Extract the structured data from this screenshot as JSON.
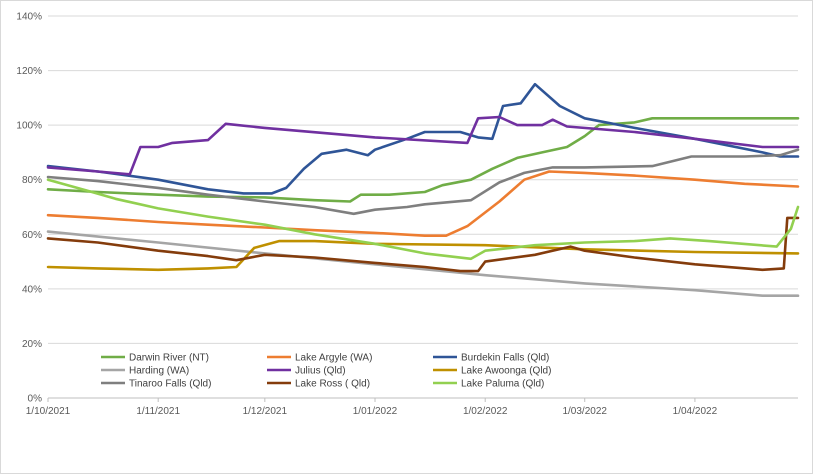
{
  "chart_data": {
    "type": "line",
    "title": "",
    "xlabel": "",
    "ylabel": "",
    "ylim": [
      0,
      140
    ],
    "y_unit": "%",
    "grid": "horizontal",
    "legend_position": "bottom-left-inside",
    "y_ticks": [
      "0%",
      "20%",
      "40%",
      "60%",
      "80%",
      "100%",
      "120%",
      "140%"
    ],
    "x_range": [
      "2021-10-01",
      "2022-04-30"
    ],
    "x_ticks": [
      {
        "date": "2021-10-01",
        "label": "1/10/2021"
      },
      {
        "date": "2021-11-01",
        "label": "1/11/2021"
      },
      {
        "date": "2021-12-01",
        "label": "1/12/2021"
      },
      {
        "date": "2022-01-01",
        "label": "1/01/2022"
      },
      {
        "date": "2022-02-01",
        "label": "1/02/2022"
      },
      {
        "date": "2022-03-01",
        "label": "1/03/2022"
      },
      {
        "date": "2022-04-01",
        "label": "1/04/2022"
      }
    ],
    "series": [
      {
        "name": "Darwin River (NT)",
        "color": "#70ad47",
        "points": [
          [
            "2021-10-01",
            76.5
          ],
          [
            "2021-10-15",
            75.5
          ],
          [
            "2021-11-01",
            74.5
          ],
          [
            "2021-11-15",
            73.8
          ],
          [
            "2021-12-01",
            73.5
          ],
          [
            "2021-12-15",
            72.5
          ],
          [
            "2021-12-25",
            72
          ],
          [
            "2021-12-28",
            74.5
          ],
          [
            "2022-01-05",
            74.5
          ],
          [
            "2022-01-15",
            75.5
          ],
          [
            "2022-01-20",
            78
          ],
          [
            "2022-01-28",
            80
          ],
          [
            "2022-02-03",
            84
          ],
          [
            "2022-02-10",
            88
          ],
          [
            "2022-02-17",
            90
          ],
          [
            "2022-02-24",
            92
          ],
          [
            "2022-03-01",
            96
          ],
          [
            "2022-03-05",
            100
          ],
          [
            "2022-03-15",
            101
          ],
          [
            "2022-03-20",
            102.5
          ],
          [
            "2022-04-30",
            102.5
          ]
        ]
      },
      {
        "name": "Lake Argyle (WA)",
        "color": "#ed7d31",
        "points": [
          [
            "2021-10-01",
            67
          ],
          [
            "2021-10-15",
            66
          ],
          [
            "2021-11-01",
            64.5
          ],
          [
            "2021-11-15",
            63.5
          ],
          [
            "2021-12-01",
            62.5
          ],
          [
            "2021-12-15",
            61.5
          ],
          [
            "2022-01-01",
            60.5
          ],
          [
            "2022-01-15",
            59.5
          ],
          [
            "2022-01-21",
            59.5
          ],
          [
            "2022-01-27",
            63
          ],
          [
            "2022-02-05",
            72
          ],
          [
            "2022-02-12",
            80
          ],
          [
            "2022-02-19",
            83
          ],
          [
            "2022-03-01",
            82.5
          ],
          [
            "2022-03-15",
            81.5
          ],
          [
            "2022-04-01",
            80
          ],
          [
            "2022-04-15",
            78.5
          ],
          [
            "2022-04-30",
            77.5
          ]
        ]
      },
      {
        "name": "Burdekin Falls (Qld)",
        "color": "#2f5597",
        "points": [
          [
            "2021-10-01",
            85
          ],
          [
            "2021-10-15",
            83
          ],
          [
            "2021-11-01",
            80
          ],
          [
            "2021-11-15",
            76.5
          ],
          [
            "2021-11-25",
            75
          ],
          [
            "2021-12-03",
            75
          ],
          [
            "2021-12-07",
            77
          ],
          [
            "2021-12-12",
            84
          ],
          [
            "2021-12-17",
            89.5
          ],
          [
            "2021-12-24",
            91
          ],
          [
            "2021-12-30",
            89
          ],
          [
            "2022-01-01",
            91
          ],
          [
            "2022-01-10",
            95
          ],
          [
            "2022-01-15",
            97.5
          ],
          [
            "2022-01-25",
            97.5
          ],
          [
            "2022-01-30",
            95.5
          ],
          [
            "2022-02-03",
            95
          ],
          [
            "2022-02-06",
            107
          ],
          [
            "2022-02-11",
            108
          ],
          [
            "2022-02-15",
            115
          ],
          [
            "2022-02-22",
            107
          ],
          [
            "2022-03-01",
            102.5
          ],
          [
            "2022-03-15",
            99
          ],
          [
            "2022-04-01",
            95
          ],
          [
            "2022-04-20",
            90
          ],
          [
            "2022-04-25",
            88.5
          ],
          [
            "2022-04-30",
            88.5
          ]
        ]
      },
      {
        "name": "Harding (WA)",
        "color": "#a5a5a5",
        "points": [
          [
            "2021-10-01",
            61
          ],
          [
            "2021-11-01",
            57
          ],
          [
            "2021-12-01",
            53
          ],
          [
            "2022-01-01",
            49
          ],
          [
            "2022-02-01",
            45
          ],
          [
            "2022-03-01",
            42
          ],
          [
            "2022-04-01",
            39.5
          ],
          [
            "2022-04-20",
            37.5
          ],
          [
            "2022-04-30",
            37.5
          ]
        ]
      },
      {
        "name": "Julius (Qld)",
        "color": "#7030a0",
        "points": [
          [
            "2021-10-01",
            84.5
          ],
          [
            "2021-10-15",
            83
          ],
          [
            "2021-10-24",
            82
          ],
          [
            "2021-10-27",
            92
          ],
          [
            "2021-11-01",
            92
          ],
          [
            "2021-11-05",
            93.5
          ],
          [
            "2021-11-15",
            94.5
          ],
          [
            "2021-11-20",
            100.5
          ],
          [
            "2021-12-01",
            99
          ],
          [
            "2022-01-01",
            95.5
          ],
          [
            "2022-01-27",
            93.5
          ],
          [
            "2022-01-30",
            102.5
          ],
          [
            "2022-02-05",
            103
          ],
          [
            "2022-02-10",
            100
          ],
          [
            "2022-02-17",
            100
          ],
          [
            "2022-02-20",
            102
          ],
          [
            "2022-02-24",
            99.5
          ],
          [
            "2022-03-15",
            97.5
          ],
          [
            "2022-04-01",
            95
          ],
          [
            "2022-04-20",
            92
          ],
          [
            "2022-04-30",
            92
          ]
        ]
      },
      {
        "name": "Lake Awoonga (Qld)",
        "color": "#bf9000",
        "points": [
          [
            "2021-10-01",
            48
          ],
          [
            "2021-10-15",
            47.5
          ],
          [
            "2021-11-01",
            47
          ],
          [
            "2021-11-15",
            47.5
          ],
          [
            "2021-11-23",
            48
          ],
          [
            "2021-11-28",
            55
          ],
          [
            "2021-12-05",
            57.5
          ],
          [
            "2021-12-15",
            57.5
          ],
          [
            "2022-01-01",
            56.5
          ],
          [
            "2022-02-01",
            56
          ],
          [
            "2022-03-01",
            54.5
          ],
          [
            "2022-04-01",
            53.5
          ],
          [
            "2022-04-30",
            53
          ]
        ]
      },
      {
        "name": "Tinaroo Falls (Qld)",
        "color": "#7f7f7f",
        "points": [
          [
            "2021-10-01",
            81
          ],
          [
            "2021-10-15",
            79.5
          ],
          [
            "2021-11-01",
            77
          ],
          [
            "2021-11-15",
            74.5
          ],
          [
            "2021-12-01",
            72
          ],
          [
            "2021-12-15",
            70
          ],
          [
            "2021-12-26",
            67.5
          ],
          [
            "2022-01-01",
            69
          ],
          [
            "2022-01-10",
            70
          ],
          [
            "2022-01-15",
            71
          ],
          [
            "2022-01-28",
            72.5
          ],
          [
            "2022-02-05",
            79
          ],
          [
            "2022-02-12",
            82.5
          ],
          [
            "2022-02-20",
            84.5
          ],
          [
            "2022-03-01",
            84.5
          ],
          [
            "2022-03-20",
            85
          ],
          [
            "2022-03-31",
            88.5
          ],
          [
            "2022-04-15",
            88.5
          ],
          [
            "2022-04-25",
            89
          ],
          [
            "2022-04-30",
            91
          ]
        ]
      },
      {
        "name": "Lake Ross ( Qld)",
        "color": "#843c0c",
        "points": [
          [
            "2021-10-01",
            58.5
          ],
          [
            "2021-10-15",
            57
          ],
          [
            "2021-11-01",
            54
          ],
          [
            "2021-11-15",
            52
          ],
          [
            "2021-11-23",
            50.5
          ],
          [
            "2021-12-01",
            52.5
          ],
          [
            "2021-12-15",
            51.5
          ],
          [
            "2022-01-01",
            49.5
          ],
          [
            "2022-01-15",
            48
          ],
          [
            "2022-01-25",
            46.5
          ],
          [
            "2022-01-30",
            46.5
          ],
          [
            "2022-02-01",
            50
          ],
          [
            "2022-02-15",
            52.5
          ],
          [
            "2022-02-25",
            55.5
          ],
          [
            "2022-03-01",
            54
          ],
          [
            "2022-03-15",
            51.5
          ],
          [
            "2022-04-01",
            49
          ],
          [
            "2022-04-20",
            47
          ],
          [
            "2022-04-26",
            47.5
          ],
          [
            "2022-04-27",
            66
          ],
          [
            "2022-04-30",
            66
          ]
        ]
      },
      {
        "name": "Lake Paluma (Qld)",
        "color": "#92d050",
        "points": [
          [
            "2021-10-01",
            80
          ],
          [
            "2021-10-12",
            76
          ],
          [
            "2021-10-20",
            73
          ],
          [
            "2021-11-01",
            69.5
          ],
          [
            "2021-11-15",
            66.5
          ],
          [
            "2021-12-01",
            63.5
          ],
          [
            "2021-12-15",
            60
          ],
          [
            "2022-01-01",
            56.5
          ],
          [
            "2022-01-15",
            53
          ],
          [
            "2022-01-28",
            51
          ],
          [
            "2022-02-01",
            54
          ],
          [
            "2022-02-15",
            56
          ],
          [
            "2022-03-01",
            57
          ],
          [
            "2022-03-15",
            57.5
          ],
          [
            "2022-03-25",
            58.5
          ],
          [
            "2022-04-05",
            57.5
          ],
          [
            "2022-04-24",
            55.5
          ],
          [
            "2022-04-28",
            62
          ],
          [
            "2022-04-30",
            70
          ]
        ]
      }
    ]
  }
}
